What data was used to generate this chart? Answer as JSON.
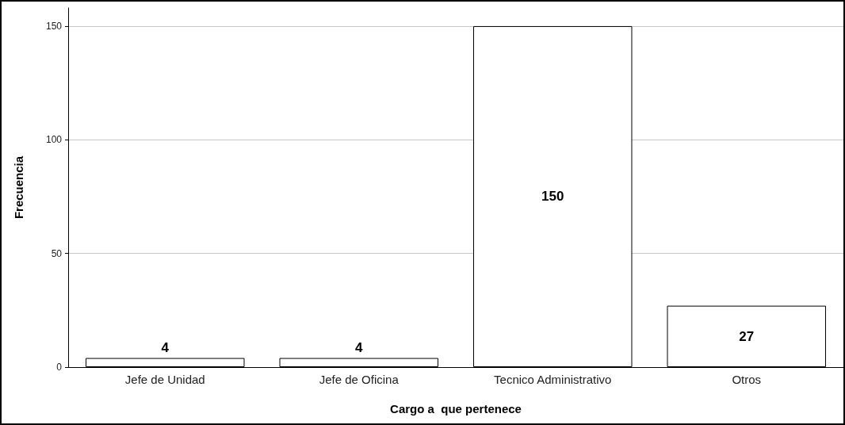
{
  "chart_data": {
    "type": "bar",
    "xlabel": "Cargo a  que pertenece",
    "ylabel": "Frecuencia",
    "categories": [
      "Jefe de Unidad",
      "Jefe de Oficina",
      "Tecnico Administrativo",
      "Otros"
    ],
    "values": [
      4,
      4,
      150,
      27
    ],
    "color": "#ffffff",
    "ylim": [
      0,
      158
    ],
    "yticks": [
      0,
      50,
      100,
      150
    ],
    "grid": "y",
    "data_labels": true
  }
}
